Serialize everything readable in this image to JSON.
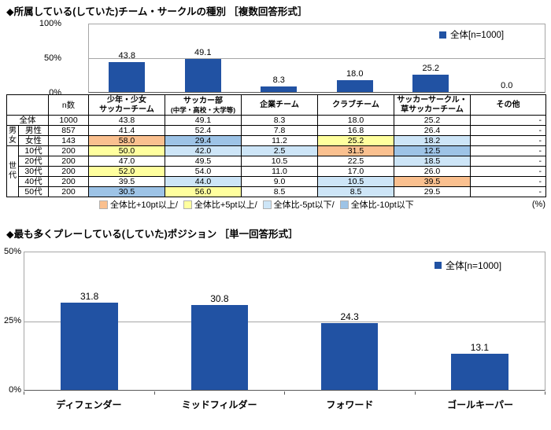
{
  "colors": {
    "bar": "#2152A3",
    "hl_p10": "#FAC08F",
    "hl_p5": "#FFFF9E",
    "hl_m5": "#CDE5F7",
    "hl_m10": "#9DC3E6",
    "grid": "#A6A6A6",
    "axis": "#595959"
  },
  "chart_data": [
    {
      "type": "bar",
      "title": "◆所属している(していた)チーム・サークルの種別 ［複数回答形式］",
      "legend": "全体[n=1000]",
      "categories": [
        "少年・少女サッカーチーム",
        "サッカー部(中学・高校・大学等)",
        "企業チーム",
        "クラブチーム",
        "サッカーサークル・草サッカーチーム",
        "その他"
      ],
      "values": [
        43.8,
        49.1,
        8.3,
        18.0,
        25.2,
        0.0
      ],
      "ylim": [
        0,
        100
      ],
      "yticklabels": [
        "100%",
        "50%",
        "0%"
      ],
      "grid": true,
      "legend_position": "top-right"
    },
    {
      "type": "bar",
      "title": "◆最も多くプレーしている(していた)ポジション ［単一回答形式］",
      "legend": "全体[n=1000]",
      "categories": [
        "ディフェンダー",
        "ミッドフィルダー",
        "フォワード",
        "ゴールキーパー"
      ],
      "values": [
        31.8,
        30.8,
        24.3,
        13.1
      ],
      "ylim": [
        0,
        50
      ],
      "yticklabels": [
        "50%",
        "25%",
        "0%"
      ],
      "grid": true,
      "legend_position": "right"
    }
  ],
  "table": {
    "n_header": "n数",
    "col_headers": [
      [
        "少年・少女",
        "サッカーチーム"
      ],
      [
        "サッカー部",
        "(中学・高校・大学等)"
      ],
      [
        "企業チーム"
      ],
      [
        "クラブチーム"
      ],
      [
        "サッカーサークル・",
        "草サッカーチーム"
      ],
      [
        "その他"
      ]
    ],
    "rows": [
      {
        "label": "全体",
        "span_label": true,
        "n": "1000",
        "values": [
          "43.8",
          "49.1",
          "8.3",
          "18.0",
          "25.2",
          "-"
        ],
        "hl": [
          null,
          null,
          null,
          null,
          null,
          null
        ]
      },
      {
        "group": {
          "label": "男女",
          "span": 2
        },
        "label": "男性",
        "n": "857",
        "values": [
          "41.4",
          "52.4",
          "7.8",
          "16.8",
          "26.4",
          "-"
        ],
        "hl": [
          null,
          null,
          null,
          null,
          null,
          null
        ]
      },
      {
        "label": "女性",
        "n": "143",
        "values": [
          "58.0",
          "29.4",
          "11.2",
          "25.2",
          "18.2",
          "-"
        ],
        "hl": [
          "p10",
          "m10",
          null,
          "p5",
          "m5",
          null
        ]
      },
      {
        "group": {
          "label": "世代",
          "span": 5
        },
        "label": "10代",
        "n": "200",
        "values": [
          "50.0",
          "42.0",
          "2.5",
          "31.5",
          "12.5",
          "-"
        ],
        "hl": [
          "p5",
          "m5",
          "m5",
          "p10",
          "m10",
          null
        ]
      },
      {
        "label": "20代",
        "n": "200",
        "values": [
          "47.0",
          "49.5",
          "10.5",
          "22.5",
          "18.5",
          "-"
        ],
        "hl": [
          null,
          null,
          null,
          null,
          "m5",
          null
        ]
      },
      {
        "label": "30代",
        "n": "200",
        "values": [
          "52.0",
          "54.0",
          "11.0",
          "17.0",
          "26.0",
          "-"
        ],
        "hl": [
          "p5",
          null,
          null,
          null,
          null,
          null
        ]
      },
      {
        "label": "40代",
        "n": "200",
        "values": [
          "39.5",
          "44.0",
          "9.0",
          "10.5",
          "39.5",
          "-"
        ],
        "hl": [
          null,
          "m5",
          null,
          "m5",
          "p10",
          null
        ]
      },
      {
        "label": "50代",
        "n": "200",
        "values": [
          "30.5",
          "56.0",
          "8.5",
          "8.5",
          "29.5",
          "-"
        ],
        "hl": [
          "m10",
          "p5",
          null,
          "m5",
          null,
          null
        ]
      }
    ],
    "legend_items": [
      {
        "key": "p10",
        "label": "全体比+10pt以上/"
      },
      {
        "key": "p5",
        "label": "全体比+5pt以上/"
      },
      {
        "key": "m5",
        "label": "全体比-5pt以下/"
      },
      {
        "key": "m10",
        "label": "全体比-10pt以下"
      }
    ],
    "unit_label": "(%)"
  }
}
